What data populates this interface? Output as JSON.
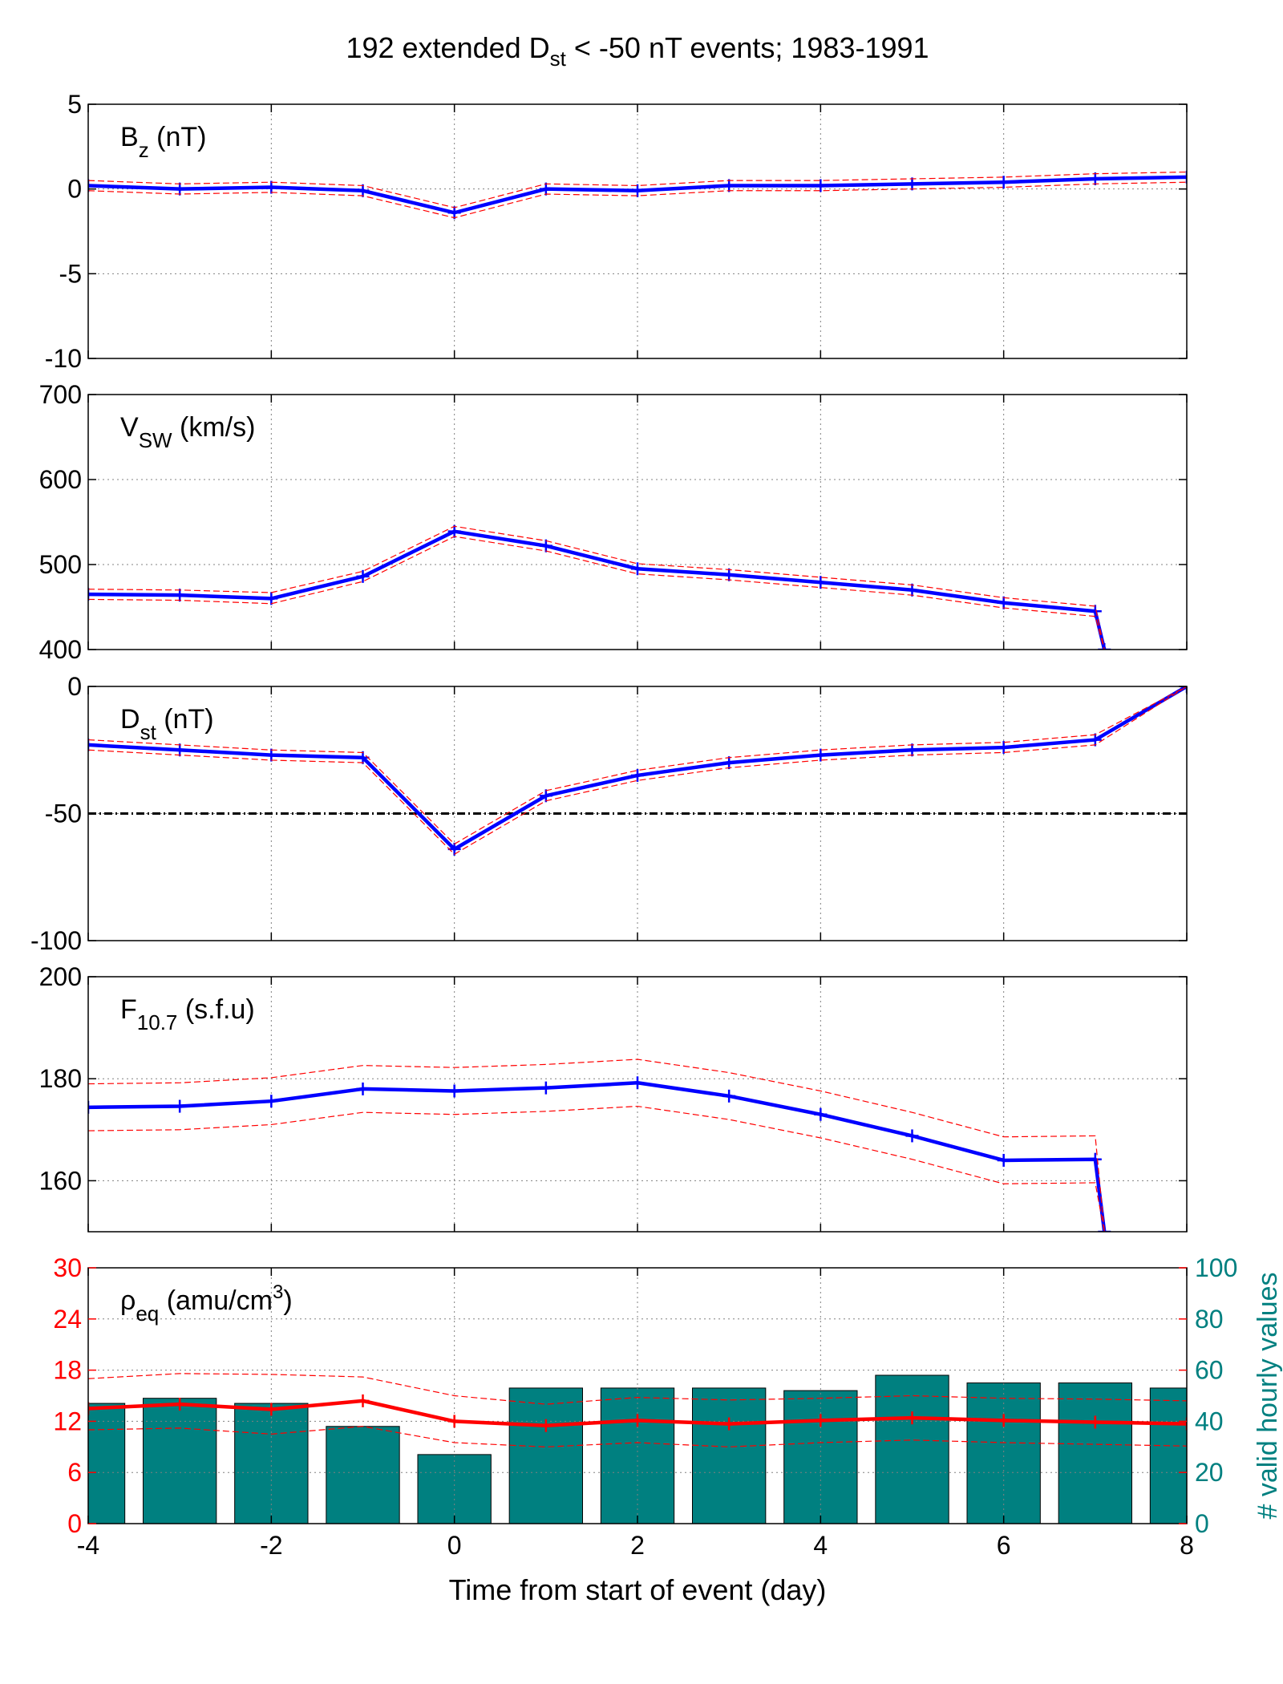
{
  "figure": {
    "title_main": "192 extended D",
    "title_sub": "st",
    "title_rest": " < -50 nT events; 1983-1991",
    "xlabel": "Time from start of event (day)"
  },
  "colors": {
    "mean": "#0000ff",
    "band": "#ff0000",
    "density": "#ff0000",
    "bars": "#008080",
    "bars_edge": "#000000",
    "grid": "#808080",
    "threshold": "#000000"
  },
  "chart_data": [
    {
      "type": "line",
      "panel": "Bz",
      "label_main": "B",
      "label_sub": "z",
      "label_rest": " (nT)",
      "x": [
        -4,
        -3,
        -2,
        -1,
        0,
        1,
        2,
        3,
        4,
        5,
        6,
        7,
        8
      ],
      "xlim": [
        -4,
        8
      ],
      "xticks": [
        -4,
        -2,
        0,
        2,
        4,
        6,
        8
      ],
      "ylim": [
        -10,
        5
      ],
      "yticks": [
        -10,
        -5,
        0,
        5
      ],
      "grid": true,
      "series": [
        {
          "role": "mean",
          "values": [
            0.2,
            0.0,
            0.1,
            -0.1,
            -1.4,
            0.0,
            -0.1,
            0.2,
            0.2,
            0.3,
            0.4,
            0.6,
            0.7
          ]
        },
        {
          "role": "upper",
          "values": [
            0.5,
            0.3,
            0.4,
            0.2,
            -1.1,
            0.3,
            0.2,
            0.5,
            0.5,
            0.6,
            0.7,
            0.9,
            1.0
          ]
        },
        {
          "role": "lower",
          "values": [
            -0.1,
            -0.3,
            -0.2,
            -0.4,
            -1.7,
            -0.3,
            -0.4,
            -0.1,
            -0.1,
            0.0,
            0.1,
            0.3,
            0.4
          ]
        }
      ]
    },
    {
      "type": "line",
      "panel": "Vsw",
      "label_main": "V",
      "label_sub": "SW",
      "label_rest": " (km/s)",
      "x": [
        -4,
        -3,
        -2,
        -1,
        0,
        1,
        2,
        3,
        4,
        5,
        6,
        7,
        7.1
      ],
      "xlim": [
        -4,
        8
      ],
      "xticks": [
        -4,
        -2,
        0,
        2,
        4,
        6,
        8
      ],
      "ylim": [
        400,
        700
      ],
      "yticks": [
        400,
        500,
        600,
        700
      ],
      "grid": true,
      "series": [
        {
          "role": "mean",
          "values": [
            465,
            464,
            460,
            486,
            539,
            522,
            495,
            488,
            479,
            470,
            455,
            445,
            400
          ]
        },
        {
          "role": "upper",
          "values": [
            471,
            470,
            467,
            492,
            545,
            528,
            501,
            494,
            485,
            476,
            461,
            451,
            400
          ]
        },
        {
          "role": "lower",
          "values": [
            459,
            458,
            454,
            480,
            533,
            516,
            489,
            482,
            473,
            464,
            449,
            439,
            400
          ]
        }
      ]
    },
    {
      "type": "line",
      "panel": "Dst",
      "label_main": "D",
      "label_sub": "st",
      "label_rest": " (nT)",
      "x": [
        -4,
        -3,
        -2,
        -1,
        0,
        1,
        2,
        3,
        4,
        5,
        6,
        7,
        8
      ],
      "xlim": [
        -4,
        8
      ],
      "xticks": [
        -4,
        -2,
        0,
        2,
        4,
        6,
        8
      ],
      "ylim": [
        -100,
        0
      ],
      "yticks": [
        -100,
        -50,
        0
      ],
      "threshold": -50,
      "grid": true,
      "series": [
        {
          "role": "mean",
          "values": [
            -23,
            -25,
            -27,
            -28,
            -64,
            -43,
            -35,
            -30,
            -27,
            -25,
            -24,
            -21,
            0
          ]
        },
        {
          "role": "upper",
          "values": [
            -21,
            -23,
            -25,
            -26,
            -62,
            -41,
            -33,
            -28,
            -25,
            -23,
            -22,
            -19,
            0
          ]
        },
        {
          "role": "lower",
          "values": [
            -25,
            -27,
            -29,
            -30,
            -66,
            -45,
            -37,
            -32,
            -29,
            -27,
            -26,
            -23,
            0
          ]
        }
      ]
    },
    {
      "type": "line",
      "panel": "F10.7",
      "label_main": "F",
      "label_sub": "10.7",
      "label_rest": " (s.f.u)",
      "x": [
        -4,
        -3,
        -2,
        -1,
        0,
        1,
        2,
        3,
        4,
        5,
        6,
        7,
        7.1
      ],
      "xlim": [
        -4,
        8
      ],
      "xticks": [
        -4,
        -2,
        0,
        2,
        4,
        6,
        8
      ],
      "ylim": [
        150,
        200
      ],
      "yticks": [
        160,
        180,
        200
      ],
      "grid": true,
      "series": [
        {
          "role": "mean",
          "values": [
            174.4,
            174.6,
            175.6,
            178.0,
            177.6,
            178.2,
            179.2,
            176.6,
            173.0,
            168.8,
            164.0,
            164.2,
            150
          ]
        },
        {
          "role": "upper",
          "values": [
            179.0,
            179.2,
            180.2,
            182.6,
            182.2,
            182.8,
            183.8,
            181.2,
            177.6,
            173.4,
            168.6,
            168.8,
            150
          ]
        },
        {
          "role": "lower",
          "values": [
            169.8,
            170.0,
            171.0,
            173.4,
            173.0,
            173.6,
            174.6,
            172.0,
            168.4,
            164.2,
            159.4,
            159.6,
            150
          ]
        }
      ]
    },
    {
      "type": "bar+line",
      "panel": "rho_eq",
      "label_main": "ρ",
      "label_sub": "eq",
      "label_rest": " (amu/cm",
      "label_sup": "3",
      "label_close": ")",
      "y2label": "# valid hourly values",
      "x": [
        -4,
        -3,
        -2,
        -1,
        0,
        1,
        2,
        3,
        4,
        5,
        6,
        7,
        8
      ],
      "xlim": [
        -4,
        8
      ],
      "xticks": [
        -4,
        -2,
        0,
        2,
        4,
        6,
        8
      ],
      "ylim": [
        0,
        30
      ],
      "yticks": [
        0,
        6,
        12,
        18,
        24,
        30
      ],
      "y2lim": [
        0,
        100
      ],
      "y2ticks": [
        0,
        20,
        40,
        60,
        80,
        100
      ],
      "grid": true,
      "series": [
        {
          "role": "mean",
          "values": [
            13.5,
            14.0,
            13.4,
            14.4,
            12.0,
            11.5,
            12.1,
            11.7,
            12.1,
            12.4,
            12.1,
            11.9,
            11.7
          ]
        },
        {
          "role": "upper",
          "values": [
            17.0,
            17.6,
            17.5,
            17.2,
            15.0,
            14.0,
            14.8,
            14.5,
            14.7,
            15.0,
            14.7,
            14.6,
            14.4
          ]
        },
        {
          "role": "lower",
          "values": [
            11.0,
            11.2,
            10.5,
            11.4,
            9.5,
            9.0,
            9.5,
            9.0,
            9.5,
            9.8,
            9.5,
            9.3,
            9.1
          ]
        }
      ],
      "bars": {
        "x": [
          -4,
          -3,
          -2,
          -1,
          0,
          1,
          2,
          3,
          4,
          5,
          6,
          7,
          8
        ],
        "values": [
          47,
          49,
          47,
          38,
          27,
          53,
          53,
          53,
          52,
          58,
          55,
          55,
          53
        ],
        "width": 0.8
      }
    }
  ]
}
